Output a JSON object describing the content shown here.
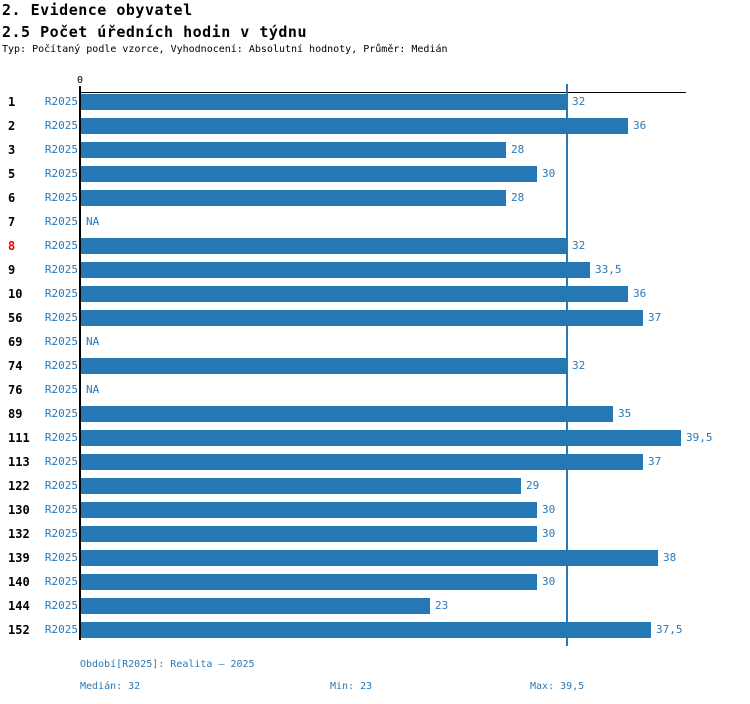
{
  "header": {
    "title1": "2. Evidence obyvatel",
    "title2": "2.5 Počet úředních hodin v týdnu",
    "subtitle": "Typ: Počítaný podle vzorce, Vyhodnocení: Absolutní hodnoty, Průměr: Medián"
  },
  "chart_data": {
    "type": "bar",
    "orientation": "horizontal",
    "title": "2.5 Počet úředních hodin v týdnu",
    "x_axis": {
      "origin_tick_label": "0",
      "min": 0,
      "max": 40
    },
    "grid": false,
    "legend_position": "none",
    "reference_line": {
      "meaning": "median",
      "value": 32
    },
    "categories": [
      "1",
      "2",
      "3",
      "5",
      "6",
      "7",
      "8",
      "9",
      "10",
      "56",
      "69",
      "74",
      "76",
      "89",
      "111",
      "113",
      "122",
      "130",
      "132",
      "139",
      "140",
      "144",
      "152"
    ],
    "series": [
      {
        "name": "R2025",
        "values": [
          32,
          36,
          28,
          30,
          28,
          null,
          32,
          33.5,
          36,
          37,
          null,
          32,
          null,
          35,
          39.5,
          37,
          29,
          30,
          30,
          38,
          30,
          23,
          37.5
        ]
      }
    ],
    "rows": [
      {
        "id": "1",
        "period": "R2025",
        "value": 32,
        "value_label": "32",
        "highlighted": false
      },
      {
        "id": "2",
        "period": "R2025",
        "value": 36,
        "value_label": "36",
        "highlighted": false
      },
      {
        "id": "3",
        "period": "R2025",
        "value": 28,
        "value_label": "28",
        "highlighted": false
      },
      {
        "id": "5",
        "period": "R2025",
        "value": 30,
        "value_label": "30",
        "highlighted": false
      },
      {
        "id": "6",
        "period": "R2025",
        "value": 28,
        "value_label": "28",
        "highlighted": false
      },
      {
        "id": "7",
        "period": "R2025",
        "value": null,
        "value_label": "NA",
        "highlighted": false
      },
      {
        "id": "8",
        "period": "R2025",
        "value": 32,
        "value_label": "32",
        "highlighted": true
      },
      {
        "id": "9",
        "period": "R2025",
        "value": 33.5,
        "value_label": "33,5",
        "highlighted": false
      },
      {
        "id": "10",
        "period": "R2025",
        "value": 36,
        "value_label": "36",
        "highlighted": false
      },
      {
        "id": "56",
        "period": "R2025",
        "value": 37,
        "value_label": "37",
        "highlighted": false
      },
      {
        "id": "69",
        "period": "R2025",
        "value": null,
        "value_label": "NA",
        "highlighted": false
      },
      {
        "id": "74",
        "period": "R2025",
        "value": 32,
        "value_label": "32",
        "highlighted": false
      },
      {
        "id": "76",
        "period": "R2025",
        "value": null,
        "value_label": "NA",
        "highlighted": false
      },
      {
        "id": "89",
        "period": "R2025",
        "value": 35,
        "value_label": "35",
        "highlighted": false
      },
      {
        "id": "111",
        "period": "R2025",
        "value": 39.5,
        "value_label": "39,5",
        "highlighted": false
      },
      {
        "id": "113",
        "period": "R2025",
        "value": 37,
        "value_label": "37",
        "highlighted": false
      },
      {
        "id": "122",
        "period": "R2025",
        "value": 29,
        "value_label": "29",
        "highlighted": false
      },
      {
        "id": "130",
        "period": "R2025",
        "value": 30,
        "value_label": "30",
        "highlighted": false
      },
      {
        "id": "132",
        "period": "R2025",
        "value": 30,
        "value_label": "30",
        "highlighted": false
      },
      {
        "id": "139",
        "period": "R2025",
        "value": 38,
        "value_label": "38",
        "highlighted": false
      },
      {
        "id": "140",
        "period": "R2025",
        "value": 30,
        "value_label": "30",
        "highlighted": false
      },
      {
        "id": "144",
        "period": "R2025",
        "value": 23,
        "value_label": "23",
        "highlighted": false
      },
      {
        "id": "152",
        "period": "R2025",
        "value": 37.5,
        "value_label": "37,5",
        "highlighted": false
      }
    ],
    "colors": {
      "bar": "#2478b4",
      "blue_text": "#2878b8",
      "highlight": "#ee0000",
      "axis": "#000000",
      "median_line": "#2878b8"
    }
  },
  "footer": {
    "period_note": "Období[R2025]: Realita – 2025",
    "median": "Medián: 32",
    "min": "Min: 23",
    "max": "Max: 39,5"
  }
}
